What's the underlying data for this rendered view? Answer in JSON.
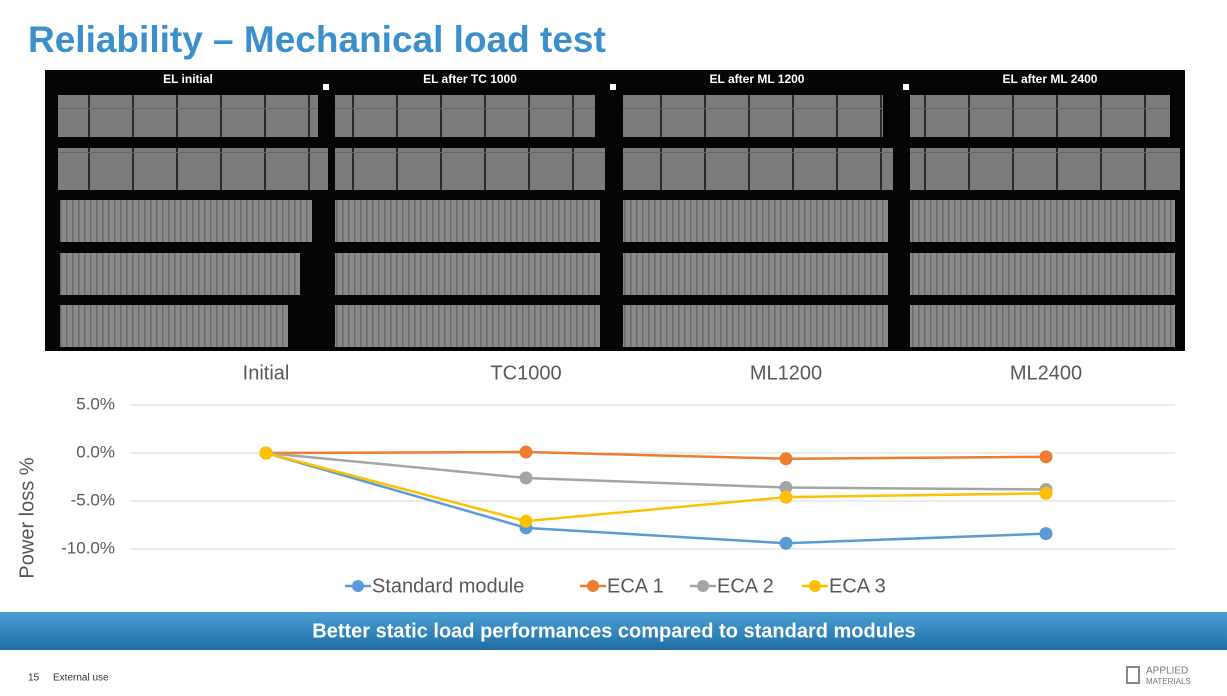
{
  "title": "Reliability – Mechanical load test",
  "panels": [
    "EL initial",
    "EL after TC 1000",
    "EL after ML 1200",
    "EL after ML 2400"
  ],
  "chart_data": {
    "type": "line",
    "categories": [
      "Initial",
      "TC1000",
      "ML1200",
      "ML2400"
    ],
    "y_label": "Power loss %",
    "ylim": [
      -10,
      5
    ],
    "yticks": [
      {
        "value": 5,
        "label": "5.0%"
      },
      {
        "value": 0,
        "label": "0.0%"
      },
      {
        "value": -5,
        "label": "-5.0%"
      },
      {
        "value": -10,
        "label": "-10.0%"
      }
    ],
    "grid": true,
    "legend": "bottom",
    "series": [
      {
        "name": "Standard module",
        "color": "#5b9bd5",
        "values": [
          0,
          -7.8,
          -9.4,
          -8.4
        ]
      },
      {
        "name": "ECA 1",
        "color": "#ed7d31",
        "values": [
          0,
          0.1,
          -0.6,
          -0.4
        ]
      },
      {
        "name": "ECA 2",
        "color": "#a5a5a5",
        "values": [
          0,
          -2.6,
          -3.6,
          -3.8
        ]
      },
      {
        "name": "ECA 3",
        "color": "#ffc000",
        "values": [
          0,
          -7.1,
          -4.6,
          -4.2
        ]
      }
    ]
  },
  "banner": "Better static load performances compared to standard modules",
  "footer": {
    "page": "15",
    "note": "External use",
    "logo": [
      "APPLIED",
      "MATERIALS"
    ]
  }
}
